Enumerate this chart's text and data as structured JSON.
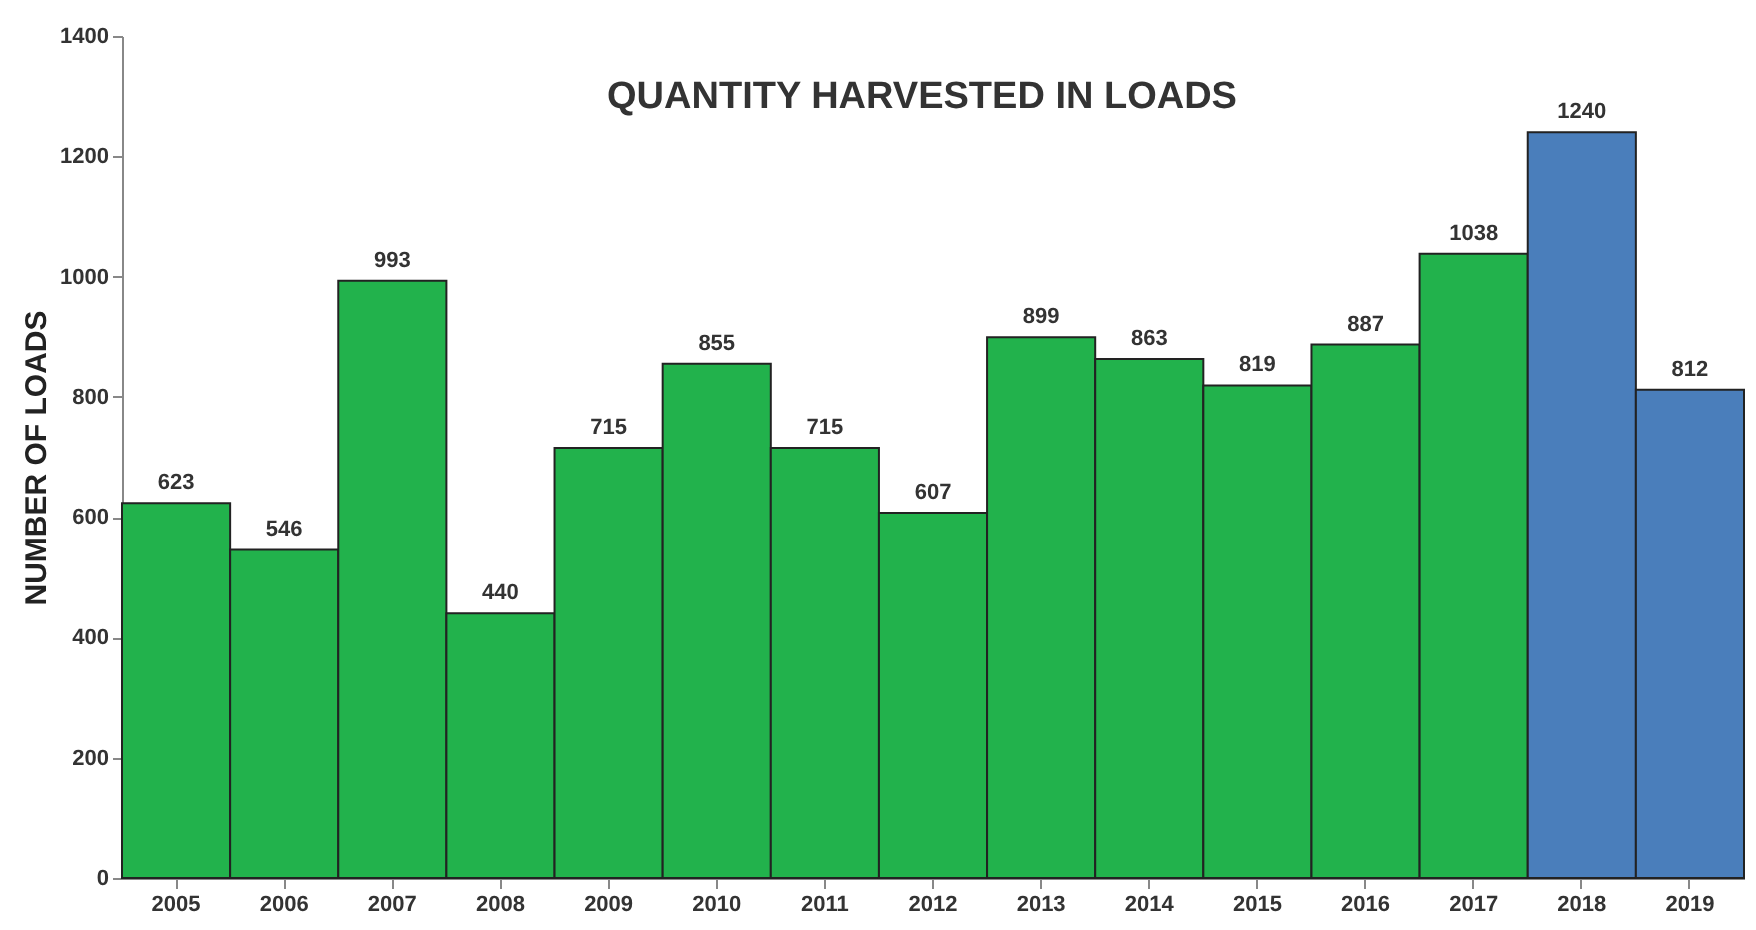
{
  "chart_data": {
    "type": "bar",
    "title": "QUANTITY HARVESTED IN LOADS",
    "ylabel": "NUMBER OF LOADS",
    "categories": [
      "2005",
      "2006",
      "2007",
      "2008",
      "2009",
      "2010",
      "2011",
      "2012",
      "2013",
      "2014",
      "2015",
      "2016",
      "2017",
      "2018",
      "2019"
    ],
    "values": [
      623,
      546,
      993,
      440,
      715,
      855,
      715,
      607,
      899,
      863,
      819,
      887,
      1038,
      1240,
      812
    ],
    "colors": [
      "#22b24c",
      "#22b24c",
      "#22b24c",
      "#22b24c",
      "#22b24c",
      "#22b24c",
      "#22b24c",
      "#22b24c",
      "#22b24c",
      "#22b24c",
      "#22b24c",
      "#22b24c",
      "#22b24c",
      "#4a7ebb",
      "#4a7ebb"
    ],
    "ylim": [
      0,
      1400
    ],
    "yticks": [
      0,
      200,
      400,
      600,
      800,
      1000,
      1200,
      1400
    ],
    "grid": false,
    "data_labels": true
  }
}
